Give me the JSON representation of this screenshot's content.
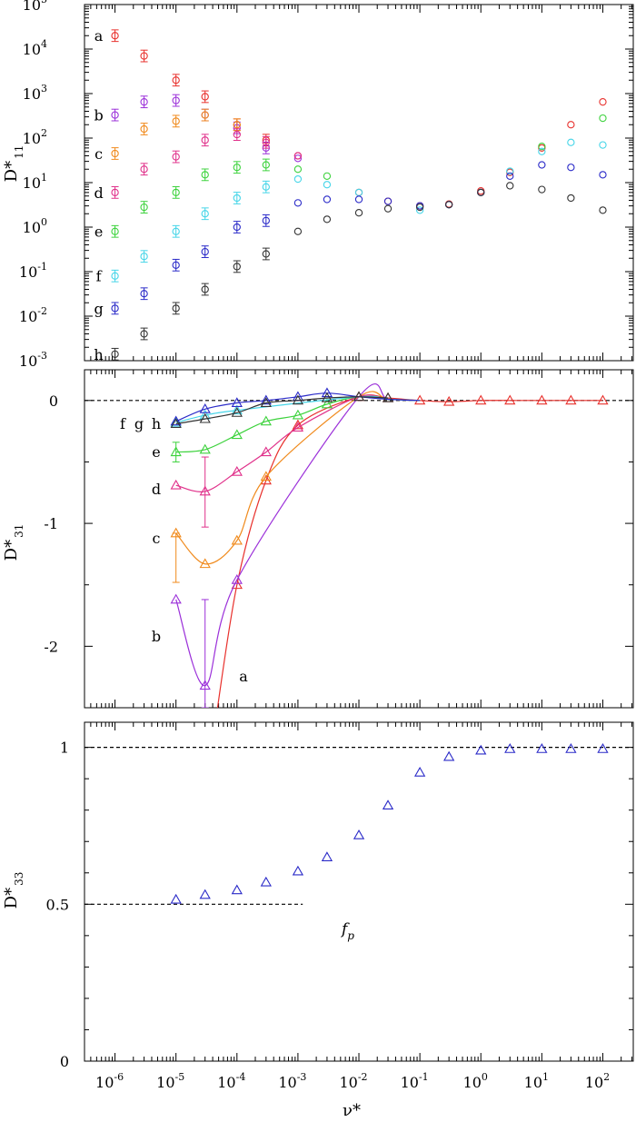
{
  "chart_data": [
    {
      "type": "scatter",
      "ylabel": "D*",
      "ylabel_sub": "11",
      "xscale": "log",
      "yscale": "log",
      "xlim": [
        3.16e-07,
        316
      ],
      "ylim": [
        0.001,
        100000
      ],
      "ytick_labels": [
        {
          "base": "10",
          "exp": "-3"
        },
        {
          "base": "10",
          "exp": "-2"
        },
        {
          "base": "10",
          "exp": "-1"
        },
        {
          "base": "10",
          "exp": "0"
        },
        {
          "base": "10",
          "exp": "1"
        },
        {
          "base": "10",
          "exp": "2"
        },
        {
          "base": "10",
          "exp": "3"
        },
        {
          "base": "10",
          "exp": "4"
        },
        {
          "base": "10",
          "exp": "5"
        }
      ],
      "series": [
        {
          "label": "a",
          "color": "#e8302c",
          "marker": "circle",
          "x": [
            1e-06,
            3e-06,
            1e-05,
            3e-05,
            0.0001,
            0.0003,
            0.001,
            0.01,
            0.03,
            0.1,
            0.3,
            1,
            3,
            10,
            30,
            100
          ],
          "y": [
            20000,
            7000,
            2000,
            850,
            200,
            90,
            40,
            6,
            3.8,
            3.0,
            3.3,
            6.5,
            17,
            60,
            200,
            650
          ]
        },
        {
          "label": "b",
          "color": "#9b30d9",
          "marker": "circle",
          "x": [
            1e-06,
            3e-06,
            1e-05,
            3e-05,
            0.0001,
            0.0003,
            0.001
          ],
          "y": [
            330,
            650,
            700,
            330,
            170,
            60,
            35
          ]
        },
        {
          "label": "c",
          "color": "#f08a1c",
          "marker": "circle",
          "x": [
            1e-06,
            3e-06,
            1e-05,
            3e-05,
            0.0001
          ],
          "y": [
            45,
            160,
            240,
            330,
            200
          ]
        },
        {
          "label": "d",
          "color": "#e0308a",
          "marker": "circle",
          "x": [
            1e-06,
            3e-06,
            1e-05,
            3e-05,
            0.0001,
            0.0003,
            0.001
          ],
          "y": [
            6,
            20,
            38,
            90,
            120,
            80,
            40
          ]
        },
        {
          "label": "e",
          "color": "#3cd23c",
          "marker": "circle",
          "x": [
            1e-06,
            3e-06,
            1e-05,
            3e-05,
            0.0001,
            0.0003,
            0.001,
            0.003,
            10,
            100
          ],
          "y": [
            0.8,
            2.8,
            6,
            15,
            22,
            25,
            20,
            14,
            65,
            280
          ]
        },
        {
          "label": "f",
          "color": "#45d5e8",
          "marker": "circle",
          "x": [
            1e-06,
            3e-06,
            1e-05,
            3e-05,
            0.0001,
            0.0003,
            0.001,
            0.003,
            0.01,
            0.1,
            3,
            10,
            30,
            100
          ],
          "y": [
            0.08,
            0.22,
            0.8,
            2,
            4.5,
            8,
            12,
            9,
            6,
            2.4,
            18,
            50,
            80,
            70
          ]
        },
        {
          "label": "g",
          "color": "#2a2ac8",
          "marker": "circle",
          "x": [
            1e-06,
            3e-06,
            1e-05,
            3e-05,
            0.0001,
            0.0003,
            0.001,
            0.003,
            0.01,
            0.03,
            0.1,
            0.3,
            1,
            3,
            10,
            30,
            100
          ],
          "y": [
            0.015,
            0.032,
            0.14,
            0.28,
            1.0,
            1.4,
            3.5,
            4.2,
            4.2,
            3.8,
            3.0,
            3.2,
            6.0,
            14,
            25,
            22,
            15
          ]
        },
        {
          "label": "h",
          "color": "#333333",
          "marker": "circle",
          "x": [
            1e-06,
            3e-06,
            1e-05,
            3e-05,
            0.0001,
            0.0003,
            0.001,
            0.003,
            0.01,
            0.03,
            0.1,
            0.3,
            1,
            3,
            10,
            30,
            100
          ],
          "y": [
            0.0014,
            0.004,
            0.015,
            0.04,
            0.13,
            0.25,
            0.8,
            1.5,
            2.1,
            2.6,
            2.8,
            3.2,
            6.0,
            8.5,
            7.0,
            4.5,
            2.4
          ]
        }
      ]
    },
    {
      "type": "line",
      "ylabel": "D*",
      "ylabel_sub": "31",
      "xscale": "log",
      "xlim": [
        3.16e-07,
        316
      ],
      "ylim": [
        -2.5,
        0.25
      ],
      "yticks": [
        0,
        -1,
        -2
      ],
      "ytick_labels": [
        "0",
        "-1",
        "-2"
      ],
      "reference_line": 0,
      "series": [
        {
          "label": "a",
          "color": "#e8302c",
          "marker": "triangle",
          "x": [
            0.0001,
            0.0003,
            0.001,
            0.01,
            0.03,
            0.1,
            0.3,
            1,
            3,
            10,
            30,
            100
          ],
          "y": [
            -1.5,
            -0.65,
            -0.2,
            0.03,
            0.02,
            0.0,
            -0.01,
            0.0,
            0.0,
            0.0,
            0.0,
            0.0
          ]
        },
        {
          "label": "b",
          "color": "#9b30d9",
          "marker": "triangle",
          "x": [
            1e-05,
            3e-05,
            0.0001
          ],
          "y": [
            -1.62,
            -2.32,
            -1.46
          ]
        },
        {
          "label": "c",
          "color": "#f08a1c",
          "marker": "triangle",
          "x": [
            1e-05,
            3e-05,
            0.0001,
            0.0003
          ],
          "y": [
            -1.08,
            -1.33,
            -1.14,
            -0.62
          ]
        },
        {
          "label": "d",
          "color": "#e0308a",
          "marker": "triangle",
          "x": [
            1e-05,
            3e-05,
            0.0001,
            0.0003,
            0.001
          ],
          "y": [
            -0.69,
            -0.74,
            -0.58,
            -0.42,
            -0.22
          ]
        },
        {
          "label": "e",
          "color": "#3cd23c",
          "marker": "triangle",
          "x": [
            1e-05,
            3e-05,
            0.0001,
            0.0003,
            0.001,
            0.003
          ],
          "y": [
            -0.42,
            -0.4,
            -0.28,
            -0.17,
            -0.12,
            -0.03
          ]
        },
        {
          "label": "f",
          "color": "#45d5e8",
          "marker": "triangle",
          "x": [
            1e-05,
            3e-05,
            0.0001
          ],
          "y": [
            -0.18,
            -0.12,
            -0.08
          ]
        },
        {
          "label": "g",
          "color": "#2a2ac8",
          "marker": "triangle",
          "x": [
            1e-05,
            3e-05,
            0.0001,
            0.0003,
            0.001,
            0.003
          ],
          "y": [
            -0.17,
            -0.07,
            -0.02,
            0.0,
            0.03,
            0.06
          ]
        },
        {
          "label": "h",
          "color": "#333333",
          "marker": "triangle",
          "x": [
            1e-05,
            3e-05,
            0.0001,
            0.0003,
            0.001,
            0.003,
            0.01,
            0.03
          ],
          "y": [
            -0.19,
            -0.15,
            -0.1,
            -0.02,
            0.0,
            0.02,
            0.03,
            0.02
          ]
        }
      ],
      "curve_labels": [
        "a",
        "b",
        "c",
        "d",
        "e",
        "f",
        "g",
        "h"
      ]
    },
    {
      "type": "scatter",
      "ylabel": "D*",
      "ylabel_sub": "33",
      "xlabel": "ν*",
      "xscale": "log",
      "xlim": [
        3.16e-07,
        316
      ],
      "ylim": [
        0,
        1.08
      ],
      "yticks": [
        0,
        0.5,
        1
      ],
      "ytick_labels": [
        "0",
        "0.5",
        "1"
      ],
      "xtick_labels": [
        {
          "base": "10",
          "exp": "-6"
        },
        {
          "base": "10",
          "exp": "-5"
        },
        {
          "base": "10",
          "exp": "-4"
        },
        {
          "base": "10",
          "exp": "-3"
        },
        {
          "base": "10",
          "exp": "-2"
        },
        {
          "base": "10",
          "exp": "-1"
        },
        {
          "base": "10",
          "exp": "0"
        },
        {
          "base": "10",
          "exp": "1"
        },
        {
          "base": "10",
          "exp": "2"
        }
      ],
      "annotation": {
        "text": "f",
        "sub": "p"
      },
      "series": [
        {
          "color": "#2a2ac8",
          "marker": "triangle",
          "x": [
            1e-05,
            3e-05,
            0.0001,
            0.0003,
            0.001,
            0.003,
            0.01,
            0.03,
            0.1,
            0.3,
            1,
            3,
            10,
            30,
            100
          ],
          "y": [
            0.515,
            0.53,
            0.545,
            0.57,
            0.605,
            0.65,
            0.72,
            0.815,
            0.92,
            0.97,
            0.99,
            0.995,
            0.995,
            0.995,
            0.995
          ]
        }
      ],
      "reference_lines": [
        {
          "y": 1,
          "from": "left",
          "to": "right"
        },
        {
          "y": 0.5,
          "from": "left",
          "to": 0.0012
        }
      ]
    }
  ]
}
